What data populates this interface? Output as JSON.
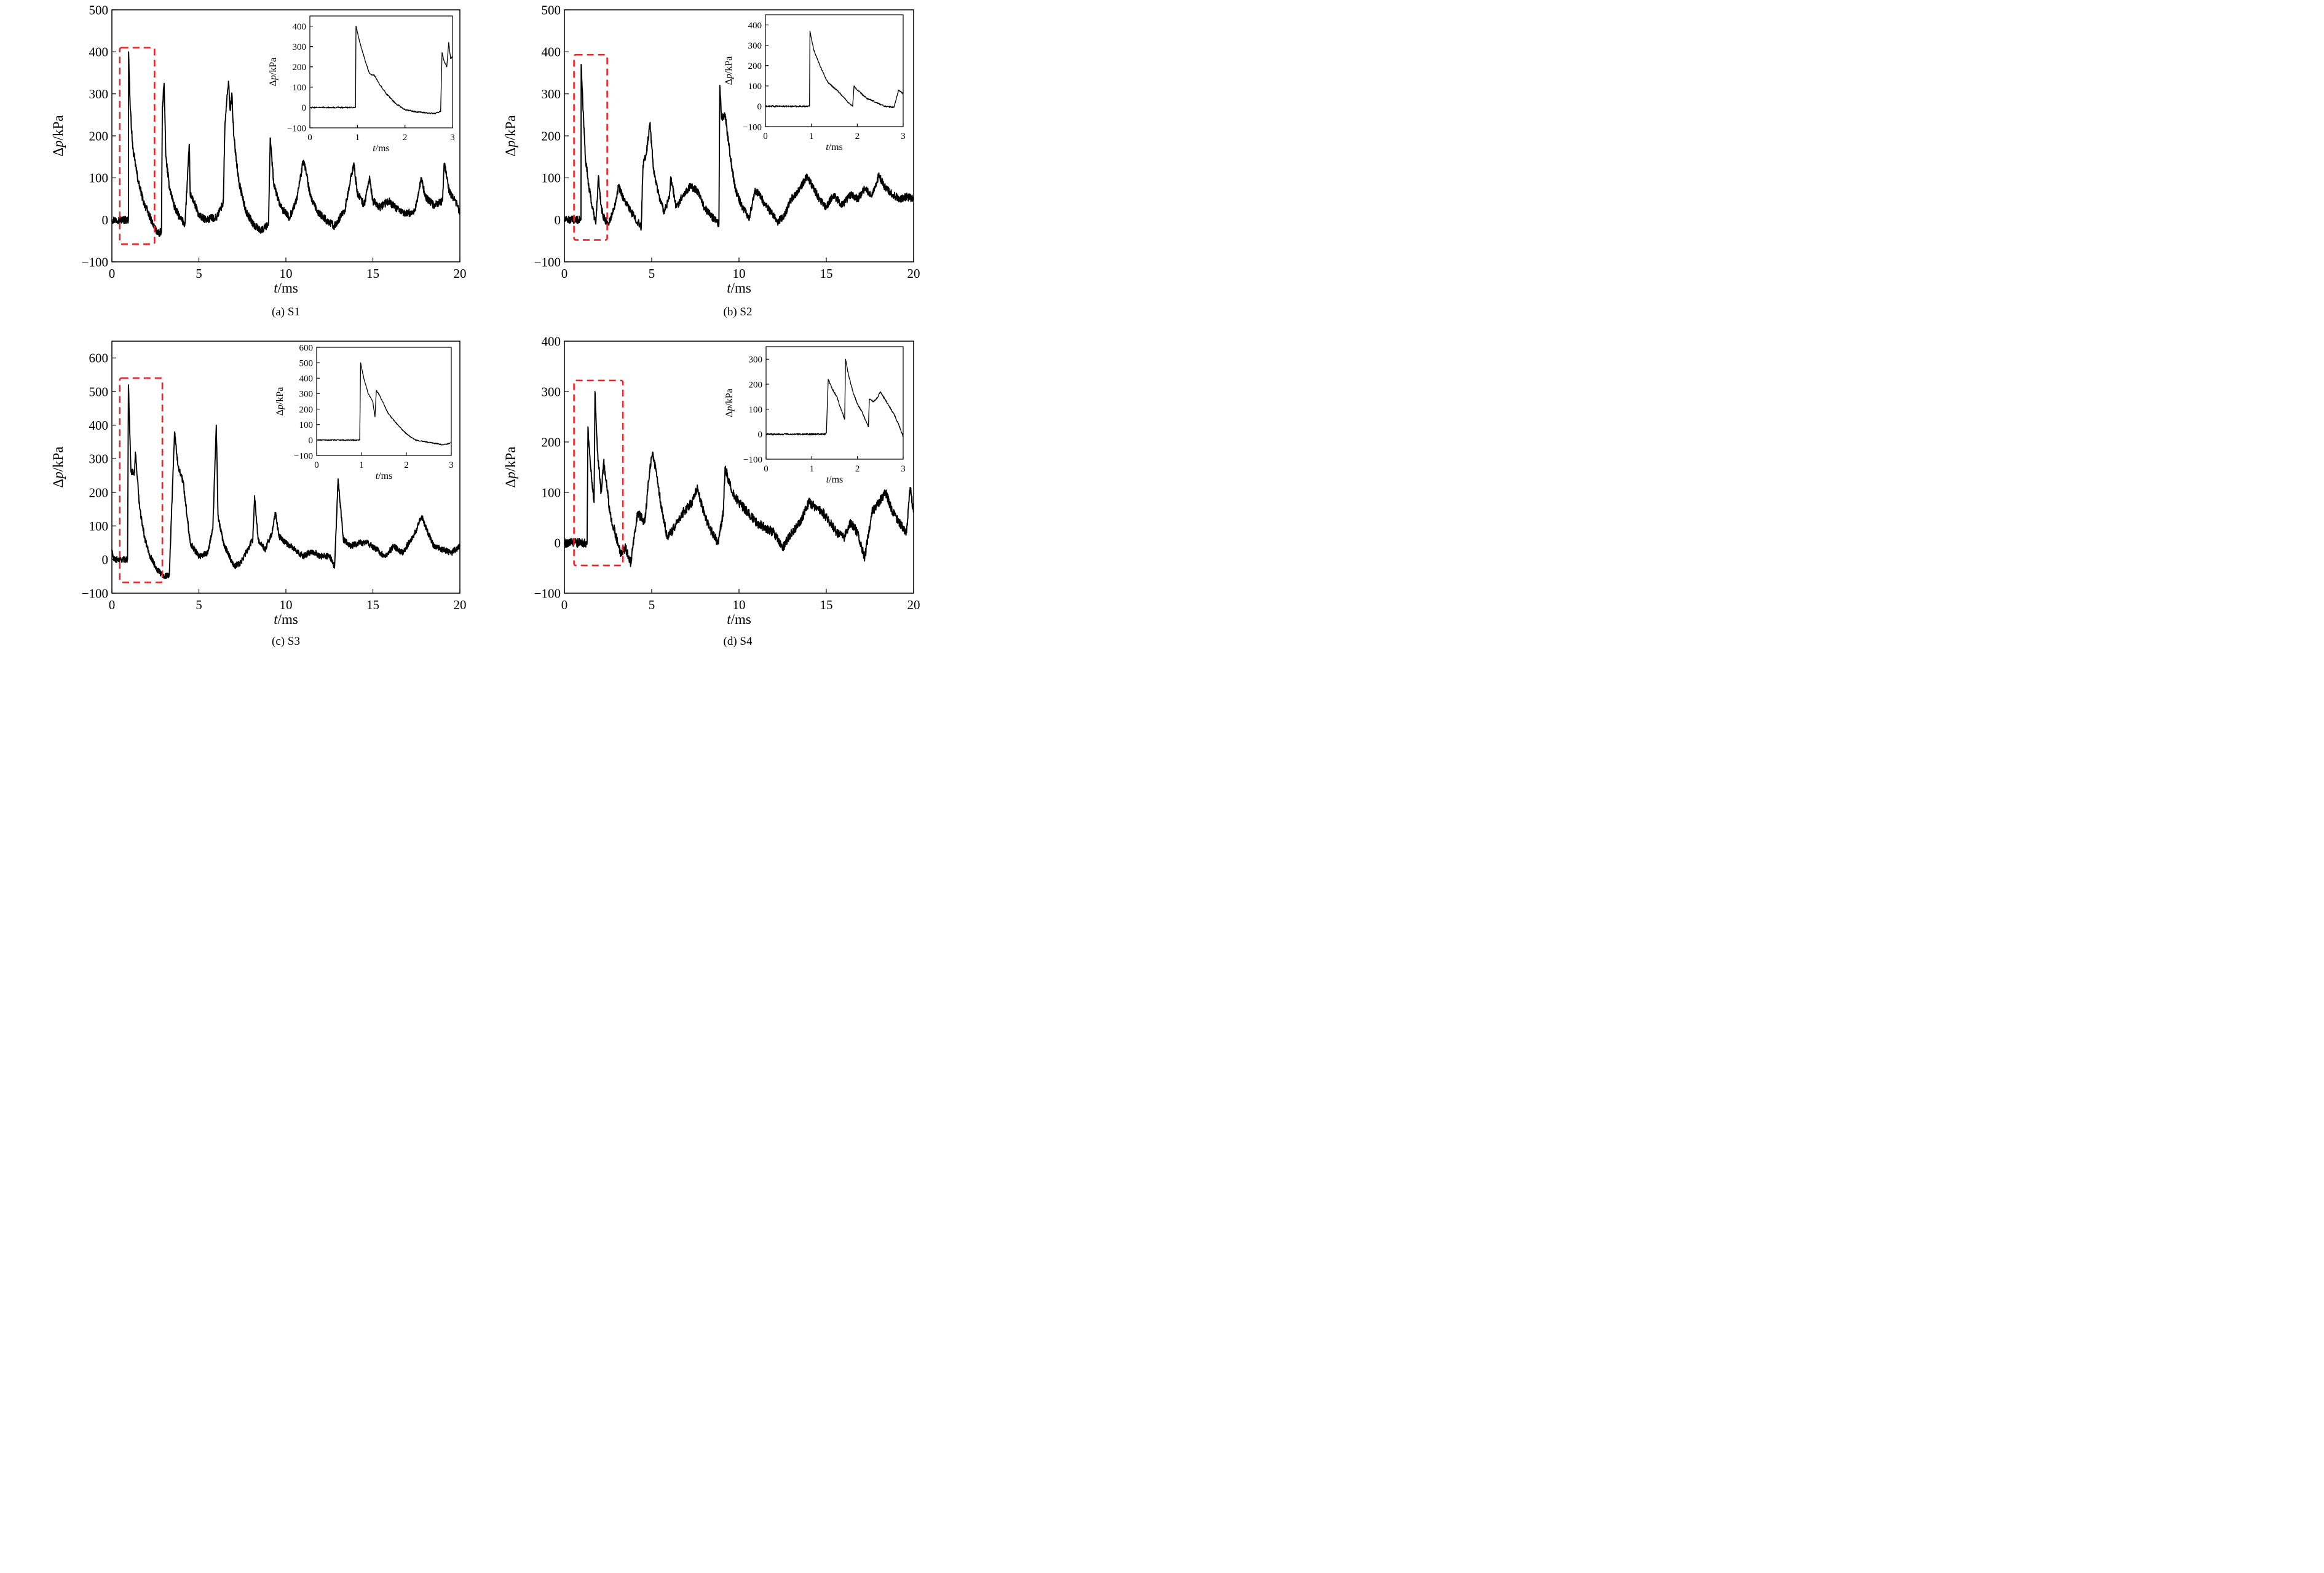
{
  "colors": {
    "trace": "#000000",
    "highlight_box": "#e8262a",
    "frame": "#000000",
    "background": "#ffffff"
  },
  "chart_data": [
    {
      "type": "line",
      "caption": "(a) S1",
      "xlabel": "t/ms",
      "ylabel": "Δp/kPa",
      "xlim": [
        0,
        20
      ],
      "ylim": [
        -100,
        500
      ],
      "xticks": [
        0,
        5,
        10,
        15,
        20
      ],
      "yticks": [
        -100,
        0,
        100,
        200,
        300,
        400,
        500
      ],
      "series": [
        {
          "x": [
            0,
            0.95,
            0.96,
            1.0,
            1.05,
            1.2,
            1.5,
            1.8,
            2.1,
            2.4,
            2.7,
            2.85,
            2.9,
            3.0,
            3.1,
            3.3,
            3.6,
            3.9,
            4.2,
            4.45,
            4.5,
            4.7,
            5.0,
            5.4,
            5.8,
            6.0,
            6.4,
            6.5,
            6.7,
            6.8,
            6.9,
            7.0,
            7.3,
            7.7,
            8.2,
            8.6,
            9.0,
            9.1,
            9.3,
            9.7,
            10.2,
            10.6,
            11.0,
            11.15,
            11.4,
            11.8,
            12.3,
            12.8,
            13.4,
            13.9,
            14.1,
            14.5,
            14.8,
            15.0,
            15.4,
            15.9,
            16.4,
            16.9,
            17.4,
            17.8,
            18.0,
            18.5,
            19.0,
            19.1,
            19.4,
            19.8,
            20.0
          ],
          "values": [
            0,
            0,
            400,
            340,
            270,
            170,
            95,
            45,
            15,
            -15,
            -35,
            -25,
            270,
            325,
            150,
            80,
            30,
            5,
            -10,
            180,
            60,
            45,
            10,
            0,
            5,
            5,
            40,
            230,
            330,
            260,
            300,
            200,
            90,
            20,
            -15,
            -25,
            -10,
            195,
            85,
            30,
            5,
            45,
            140,
            120,
            55,
            20,
            0,
            -15,
            25,
            135,
            65,
            35,
            100,
            45,
            30,
            45,
            25,
            15,
            20,
            100,
            55,
            35,
            45,
            135,
            65,
            40,
            15
          ]
        }
      ]
    },
    {
      "type": "line",
      "caption": "(b) S2",
      "xlabel": "t/ms",
      "ylabel": "Δp/kPa",
      "xlim": [
        0,
        20
      ],
      "ylim": [
        -100,
        500
      ],
      "xticks": [
        0,
        5,
        10,
        15,
        20
      ],
      "yticks": [
        -100,
        0,
        100,
        200,
        300,
        400,
        500
      ],
      "series": [
        {
          "x": [
            0,
            0.95,
            0.96,
            1.05,
            1.2,
            1.4,
            1.6,
            1.8,
            1.95,
            2.05,
            2.2,
            2.5,
            2.8,
            3.1,
            3.4,
            3.8,
            4.2,
            4.4,
            4.5,
            4.7,
            4.9,
            5.1,
            5.4,
            5.7,
            6.0,
            6.1,
            6.4,
            6.8,
            7.2,
            7.6,
            8.0,
            8.4,
            8.85,
            8.9,
            9.0,
            9.2,
            9.5,
            9.8,
            10.2,
            10.6,
            10.9,
            11.2,
            11.5,
            11.8,
            12.2,
            12.6,
            13.0,
            13.5,
            13.9,
            14.2,
            14.6,
            15.0,
            15.4,
            15.9,
            16.4,
            16.8,
            17.2,
            17.6,
            18.0,
            18.4,
            18.8,
            19.2,
            19.6,
            20.0
          ],
          "values": [
            0,
            0,
            370,
            280,
            150,
            80,
            30,
            -10,
            105,
            50,
            10,
            -10,
            20,
            80,
            50,
            20,
            -5,
            -20,
            130,
            160,
            230,
            120,
            60,
            20,
            50,
            100,
            30,
            60,
            80,
            70,
            30,
            10,
            -10,
            320,
            240,
            250,
            150,
            70,
            30,
            5,
            70,
            60,
            35,
            20,
            -5,
            10,
            50,
            75,
            105,
            80,
            50,
            30,
            60,
            35,
            60,
            50,
            75,
            55,
            105,
            75,
            60,
            50,
            55,
            50
          ]
        }
      ]
    },
    {
      "type": "line",
      "caption": "(c) S3",
      "xlabel": "t/ms",
      "ylabel": "Δp/kPa",
      "xlim": [
        0,
        20
      ],
      "ylim": [
        -100,
        650
      ],
      "xticks": [
        0,
        5,
        10,
        15,
        20
      ],
      "yticks": [
        -100,
        0,
        100,
        200,
        300,
        400,
        500,
        600
      ],
      "series": [
        {
          "x": [
            0,
            0.1,
            0.3,
            0.9,
            0.95,
            1.1,
            1.3,
            1.35,
            1.6,
            1.9,
            2.2,
            2.6,
            3.0,
            3.3,
            3.6,
            3.8,
            4.1,
            4.5,
            5.0,
            5.5,
            5.8,
            6.0,
            6.1,
            6.4,
            7.0,
            7.4,
            7.8,
            8.1,
            8.2,
            8.4,
            8.8,
            9.2,
            9.4,
            9.6,
            10.0,
            10.5,
            11.0,
            11.5,
            12.0,
            12.5,
            12.8,
            13.0,
            13.3,
            13.7,
            14.2,
            14.7,
            15.2,
            15.7,
            16.2,
            16.7,
            17.2,
            17.5,
            17.8,
            18.0,
            18.5,
            19.0,
            19.5,
            20.0
          ],
          "values": [
            30,
            0,
            0,
            0,
            520,
            260,
            260,
            320,
            150,
            60,
            10,
            -30,
            -50,
            -45,
            380,
            280,
            230,
            50,
            10,
            20,
            90,
            400,
            130,
            50,
            -20,
            -10,
            30,
            60,
            190,
            60,
            30,
            80,
            140,
            70,
            50,
            30,
            10,
            25,
            10,
            10,
            -20,
            240,
            60,
            40,
            50,
            50,
            30,
            10,
            40,
            20,
            60,
            90,
            130,
            100,
            40,
            30,
            20,
            40
          ]
        }
      ]
    },
    {
      "type": "line",
      "caption": "(d) S4",
      "xlabel": "t/ms",
      "ylabel": "Δp/kPa",
      "xlim": [
        0,
        20
      ],
      "ylim": [
        -100,
        400
      ],
      "xticks": [
        0,
        5,
        10,
        15,
        20
      ],
      "yticks": [
        -100,
        0,
        100,
        200,
        300,
        400
      ],
      "series": [
        {
          "x": [
            0,
            1.3,
            1.35,
            1.5,
            1.7,
            1.75,
            1.9,
            2.1,
            2.25,
            2.4,
            2.6,
            2.9,
            3.2,
            3.5,
            3.8,
            4.2,
            4.6,
            4.9,
            5.05,
            5.3,
            5.6,
            5.9,
            6.3,
            6.8,
            7.3,
            7.6,
            7.9,
            8.3,
            8.8,
            9.1,
            9.2,
            9.6,
            10.0,
            10.5,
            11.0,
            11.5,
            12.0,
            12.5,
            13.0,
            13.5,
            14.0,
            14.4,
            14.8,
            15.2,
            15.6,
            16.0,
            16.4,
            16.8,
            17.2,
            17.6,
            18.0,
            18.4,
            18.8,
            19.2,
            19.6,
            19.8,
            20.0
          ],
          "values": [
            0,
            0,
            230,
            150,
            80,
            300,
            180,
            100,
            160,
            120,
            60,
            20,
            -20,
            -10,
            -40,
            60,
            40,
            150,
            180,
            130,
            60,
            10,
            30,
            60,
            80,
            110,
            70,
            30,
            0,
            60,
            150,
            100,
            80,
            60,
            40,
            30,
            20,
            -10,
            20,
            40,
            80,
            70,
            60,
            40,
            20,
            10,
            40,
            20,
            -30,
            60,
            80,
            100,
            60,
            40,
            20,
            110,
            60
          ]
        }
      ],
      "inset": {
        "xlabel": "t/ms",
        "ylabel": "Δp/kPa",
        "xlim": [
          0,
          3
        ],
        "ylim": [
          -100,
          350
        ],
        "xticks": [
          0,
          1,
          2,
          3
        ],
        "yticks": [
          -100,
          0,
          100,
          200,
          300
        ],
        "x": [
          0,
          1.3,
          1.32,
          1.36,
          1.45,
          1.55,
          1.62,
          1.66,
          1.72,
          1.74,
          1.8,
          1.9,
          2.0,
          2.1,
          2.2,
          2.24,
          2.26,
          2.35,
          2.45,
          2.5,
          2.6,
          2.7,
          2.8,
          2.9,
          3.0
        ],
        "values": [
          0,
          0,
          5,
          220,
          180,
          150,
          110,
          90,
          60,
          300,
          240,
          170,
          120,
          90,
          45,
          30,
          140,
          130,
          150,
          170,
          140,
          110,
          80,
          40,
          -10
        ]
      }
    }
  ],
  "insets_extra": [
    {
      "xlabel": "t/ms",
      "ylabel": "Δp/kPa",
      "xlim": [
        0,
        3
      ],
      "ylim": [
        -100,
        450
      ],
      "xticks": [
        0,
        1,
        2,
        3
      ],
      "yticks": [
        -100,
        0,
        100,
        200,
        300,
        400
      ],
      "x": [
        0,
        0.96,
        0.97,
        1.05,
        1.15,
        1.25,
        1.3,
        1.35,
        1.45,
        1.6,
        1.8,
        2.0,
        2.2,
        2.4,
        2.6,
        2.75,
        2.78,
        2.82,
        2.88,
        2.92,
        2.96,
        3.0
      ],
      "values": [
        0,
        0,
        400,
        320,
        240,
        170,
        160,
        160,
        120,
        70,
        20,
        -10,
        -20,
        -25,
        -30,
        -20,
        270,
        230,
        200,
        320,
        240,
        250
      ]
    },
    {
      "xlabel": "t/ms",
      "ylabel": "Δp/kPa",
      "xlim": [
        0,
        3
      ],
      "ylim": [
        -100,
        450
      ],
      "xticks": [
        0,
        1,
        2,
        3
      ],
      "yticks": [
        -100,
        0,
        100,
        200,
        300,
        400
      ],
      "x": [
        0,
        0.96,
        0.97,
        1.05,
        1.15,
        1.25,
        1.35,
        1.45,
        1.6,
        1.8,
        1.9,
        1.93,
        2.0,
        2.2,
        2.4,
        2.6,
        2.8,
        2.9,
        3.0
      ],
      "values": [
        0,
        0,
        370,
        280,
        220,
        170,
        120,
        100,
        70,
        20,
        0,
        100,
        80,
        40,
        20,
        0,
        -5,
        80,
        60
      ]
    },
    {
      "xlabel": "t/ms",
      "ylabel": "Δp/kPa",
      "xlim": [
        0,
        3
      ],
      "ylim": [
        -100,
        600
      ],
      "xticks": [
        0,
        1,
        2,
        3
      ],
      "yticks": [
        -100,
        0,
        100,
        200,
        300,
        400,
        500,
        600
      ],
      "x": [
        0,
        0.96,
        0.98,
        1.05,
        1.15,
        1.25,
        1.3,
        1.33,
        1.4,
        1.5,
        1.6,
        1.8,
        2.0,
        2.2,
        2.4,
        2.6,
        2.8,
        3.0
      ],
      "values": [
        0,
        0,
        500,
        400,
        300,
        250,
        150,
        320,
        290,
        230,
        170,
        100,
        40,
        0,
        -10,
        -20,
        -30,
        -20
      ]
    }
  ]
}
